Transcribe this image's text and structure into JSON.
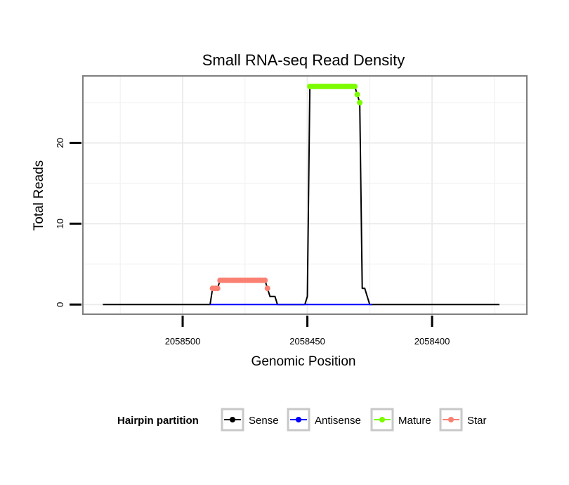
{
  "chart_data": {
    "type": "line",
    "title": "Small RNA-seq Read Density",
    "xlabel": "Genomic Position",
    "ylabel": "Total Reads",
    "x_reversed": true,
    "xlim": [
      2058540,
      2058362
    ],
    "ylim": [
      -1.2,
      28.3
    ],
    "x_ticks": [
      2058500,
      2058450,
      2058400
    ],
    "x_tick_labels": [
      "2058500",
      "2058450",
      "2058400"
    ],
    "y_ticks": [
      0,
      10,
      20
    ],
    "y_tick_labels": [
      "0",
      "10",
      "20"
    ],
    "grid": true,
    "legend": {
      "title": "Hairpin partition",
      "position": "bottom",
      "entries": [
        {
          "label": "Sense",
          "color": "#000000"
        },
        {
          "label": "Antisense",
          "color": "#0000ff"
        },
        {
          "label": "Mature",
          "color": "#7cfc00"
        },
        {
          "label": "Star",
          "color": "#fa8072"
        }
      ]
    },
    "series": [
      {
        "name": "Sense",
        "color": "#000000",
        "x": [
          2058532,
          2058489,
          2058488,
          2058487,
          2058486,
          2058485,
          2058467,
          2058466,
          2058465,
          2058463,
          2058462,
          2058461,
          2058451,
          2058450,
          2058449,
          2058431,
          2058430,
          2058429,
          2058428,
          2058427,
          2058426,
          2058425,
          2058424,
          2058373
        ],
        "y": [
          0,
          0,
          2,
          2,
          2,
          3,
          3,
          2,
          1,
          1,
          0,
          0,
          0,
          1,
          27,
          27,
          26,
          25,
          2,
          2,
          1,
          0,
          0,
          0
        ]
      },
      {
        "name": "Antisense",
        "color": "#0000ff",
        "x": [
          2058489,
          2058461,
          2058451,
          2058424
        ],
        "y": [
          0,
          0,
          0,
          0
        ]
      },
      {
        "name": "Mature",
        "color": "#7cfc00",
        "x": [
          2058449,
          2058448,
          2058447,
          2058446,
          2058445,
          2058444,
          2058443,
          2058442,
          2058441,
          2058440,
          2058439,
          2058438,
          2058437,
          2058436,
          2058435,
          2058434,
          2058433,
          2058432,
          2058431,
          2058430,
          2058429
        ],
        "y": [
          27,
          27,
          27,
          27,
          27,
          27,
          27,
          27,
          27,
          27,
          27,
          27,
          27,
          27,
          27,
          27,
          27,
          27,
          27,
          26,
          25
        ]
      },
      {
        "name": "Star",
        "color": "#fa8072",
        "x": [
          2058488,
          2058487,
          2058486,
          2058485,
          2058484,
          2058483,
          2058482,
          2058481,
          2058480,
          2058479,
          2058478,
          2058477,
          2058476,
          2058475,
          2058474,
          2058473,
          2058472,
          2058471,
          2058470,
          2058469,
          2058468,
          2058467,
          2058466
        ],
        "y": [
          2,
          2,
          2,
          3,
          3,
          3,
          3,
          3,
          3,
          3,
          3,
          3,
          3,
          3,
          3,
          3,
          3,
          3,
          3,
          3,
          3,
          3,
          2
        ]
      }
    ]
  }
}
